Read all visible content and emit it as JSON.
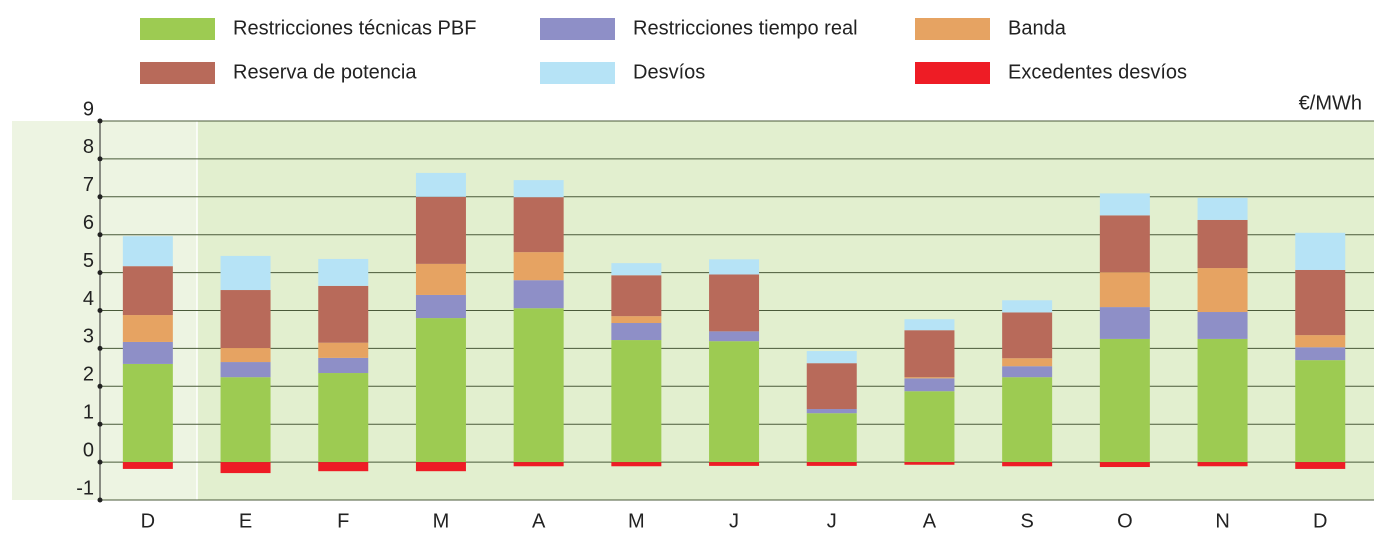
{
  "chart_data": {
    "type": "stacked_bar",
    "unit_label": "€/MWh",
    "categories": [
      "D",
      "E",
      "F",
      "M",
      "A",
      "M",
      "J",
      "J",
      "A",
      "S",
      "O",
      "N",
      "D"
    ],
    "series": [
      {
        "name": "Restricciones  técnicas PBF",
        "color": "#9dcb52",
        "values": [
          2.59,
          2.24,
          2.35,
          3.8,
          4.06,
          3.22,
          3.19,
          1.29,
          1.87,
          2.24,
          3.25,
          3.25,
          2.69
        ]
      },
      {
        "name": "Restricciones tiempo real",
        "color": "#8e8fc7",
        "values": [
          0.58,
          0.4,
          0.4,
          0.61,
          0.74,
          0.45,
          0.26,
          0.11,
          0.34,
          0.29,
          0.84,
          0.71,
          0.34
        ]
      },
      {
        "name": "Banda",
        "color": "#e6a362",
        "values": [
          0.71,
          0.37,
          0.4,
          0.82,
          0.74,
          0.18,
          0,
          0,
          0.03,
          0.21,
          0.92,
          1.16,
          0.32
        ]
      },
      {
        "name": "Reserva de potencia",
        "color": "#b86a5a",
        "values": [
          1.29,
          1.53,
          1.5,
          1.77,
          1.45,
          1.08,
          1.5,
          1.21,
          1.24,
          1.21,
          1.5,
          1.27,
          1.72
        ]
      },
      {
        "name": "Desvíos",
        "color": "#b6e3f6",
        "values": [
          0.79,
          0.9,
          0.71,
          0.63,
          0.45,
          0.32,
          0.4,
          0.32,
          0.29,
          0.32,
          0.58,
          0.58,
          0.98
        ]
      },
      {
        "name": "Excedentes desvíos",
        "color": "#ee1c25",
        "values": [
          -0.18,
          -0.29,
          -0.24,
          -0.24,
          -0.11,
          -0.11,
          -0.1,
          -0.1,
          -0.07,
          -0.11,
          -0.13,
          -0.11,
          -0.18
        ]
      }
    ],
    "ylim": [
      -1,
      9
    ],
    "yticks": [
      -1,
      0,
      1,
      2,
      3,
      4,
      5,
      6,
      7,
      8,
      9
    ],
    "grid": true
  }
}
